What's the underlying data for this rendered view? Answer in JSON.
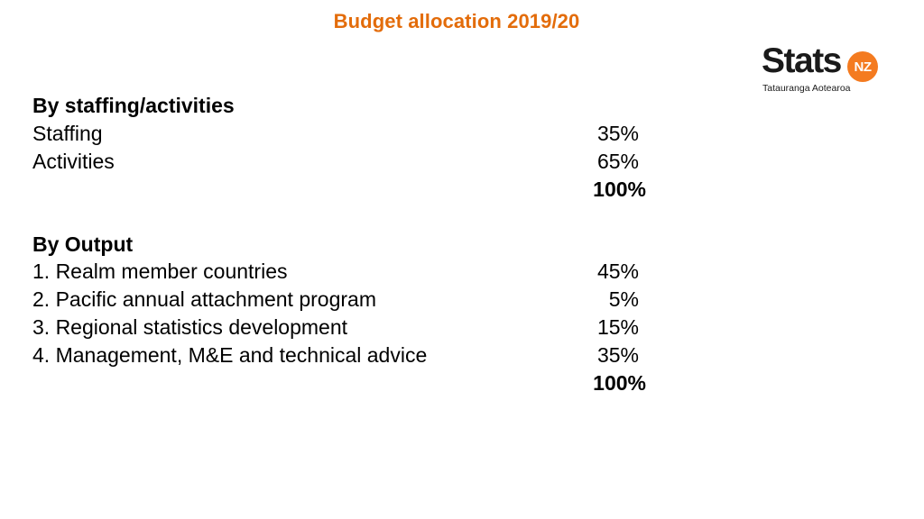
{
  "title": "Budget allocation 2019/20",
  "colors": {
    "title": "#e36c0a",
    "brand_badge": "#f47b20"
  },
  "logo": {
    "word": "Stats",
    "badge": "NZ",
    "tagline": "Tatauranga Aotearoa"
  },
  "staffing_section": {
    "heading": "By staffing/activities",
    "rows": [
      {
        "label": "Staffing",
        "value": "35%"
      },
      {
        "label": "Activities",
        "value": "65%"
      }
    ],
    "total": "100%"
  },
  "output_section": {
    "heading": "By Output",
    "rows": [
      {
        "label": "1. Realm member countries",
        "value": "45%"
      },
      {
        "label": "2. Pacific annual attachment program",
        "value": "5%"
      },
      {
        "label": "3. Regional statistics development",
        "value": "15%"
      },
      {
        "label": "4. Management, M&E and technical advice",
        "value": "35%"
      }
    ],
    "total": "100%"
  }
}
